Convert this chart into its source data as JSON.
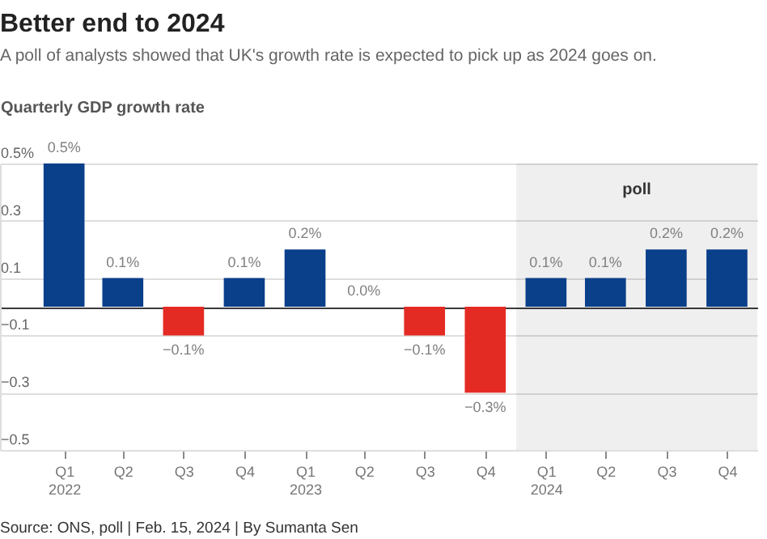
{
  "chart_data": {
    "type": "bar",
    "title": "Better end to 2024",
    "subtitle": "A poll of analysts showed that UK's growth rate is expected to pick up as 2024 goes on.",
    "ylabel": "Quarterly GDP growth rate",
    "annotations": [
      "Source: ONS, poll | Feb. 15, 2024 | By Sumanta Sen"
    ],
    "x": [
      "2022-02-15",
      "2022-05-15",
      "2022-08-15",
      "2022-11-15",
      "2023-02-15",
      "2023-05-15",
      "2023-08-15",
      "2023-11-15",
      "2024-02-15",
      "2024-05-15",
      "2024-08-15",
      "2024-11-15"
    ],
    "xlim": [
      "2021-11-10",
      "2024-12-31"
    ],
    "xticks": [
      {
        "value": "2022-02-15",
        "label": "Q1\n2022"
      },
      {
        "value": "2022-05-15",
        "label": "Q2"
      },
      {
        "value": "2022-08-15",
        "label": "Q3"
      },
      {
        "value": "2022-11-15",
        "label": "Q4"
      },
      {
        "value": "2023-02-15",
        "label": "Q1\n2023"
      },
      {
        "value": "2023-05-15",
        "label": "Q2"
      },
      {
        "value": "2023-08-15",
        "label": "Q3"
      },
      {
        "value": "2023-11-15",
        "label": "Q4"
      },
      {
        "value": "2024-02-15",
        "label": "Q1\n2024"
      },
      {
        "value": "2024-05-15",
        "label": "Q2"
      },
      {
        "value": "2024-08-15",
        "label": "Q3"
      },
      {
        "value": "2024-11-15",
        "label": "Q4"
      }
    ],
    "values": [
      0.5,
      0.1,
      -0.1,
      0.1,
      0.2,
      0.0,
      -0.1,
      -0.3,
      0.1,
      0.1,
      0.2,
      0.2
    ],
    "colors": [
      "#0a3f8a",
      "#0a3f8a",
      "#e32b24",
      "#0a3f8a",
      "#0a3f8a",
      "#0a3f8a",
      "#e32b24",
      "#e32b24",
      "#0a3f8a",
      "#0a3f8a",
      "#0a3f8a",
      "#0a3f8a"
    ],
    "value_labels": [
      "0.5%",
      "0.1%",
      "−0.1%",
      "0.1%",
      "0.2%",
      "0.0%",
      "−0.1%",
      "−0.3%",
      "0.1%",
      "0.1%",
      "0.2%",
      "0.2%"
    ],
    "ylim": [
      -0.5,
      0.5
    ],
    "yticks": [
      {
        "value": -0.5,
        "label": "−0.5"
      },
      {
        "value": -0.3,
        "label": "−0.3"
      },
      {
        "value": -0.1,
        "label": "−0.1"
      },
      {
        "value": 0,
        "label": null
      },
      0.1,
      0.3,
      {
        "value": 0.5,
        "label": "0.5%"
      }
    ],
    "grid": "y",
    "bands": [
      {
        "axis": "x",
        "from": "2024-01-01",
        "to": "2024-12-31",
        "label": "poll",
        "color": "#efefef"
      }
    ]
  }
}
